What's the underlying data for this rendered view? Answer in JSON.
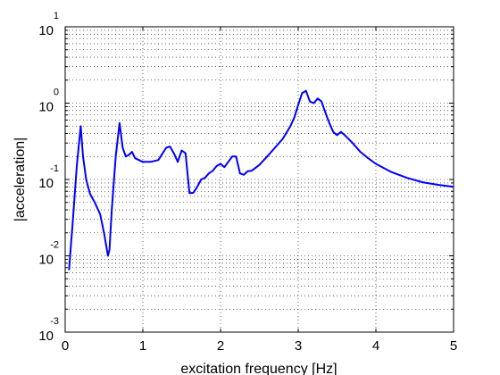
{
  "chart_data": {
    "type": "line",
    "title": "",
    "xlabel": "excitation frequency [Hz]",
    "ylabel": "|acceleration|",
    "xlim": [
      0,
      5
    ],
    "ylim": [
      0.001,
      10
    ],
    "yscale": "log",
    "grid": true,
    "x_ticks": [
      "0",
      "1",
      "2",
      "3",
      "4",
      "5"
    ],
    "y_ticks": [
      {
        "base": "10",
        "exp": "-3"
      },
      {
        "base": "10",
        "exp": "-2"
      },
      {
        "base": "10",
        "exp": "-1"
      },
      {
        "base": "10",
        "exp": "0"
      },
      {
        "base": "10",
        "exp": "1"
      }
    ],
    "series": [
      {
        "color": "#0000ff",
        "x": [
          0.05,
          0.1,
          0.15,
          0.2,
          0.23,
          0.27,
          0.32,
          0.38,
          0.45,
          0.5,
          0.55,
          0.57,
          0.6,
          0.65,
          0.7,
          0.74,
          0.78,
          0.82,
          0.86,
          0.9,
          1.0,
          1.1,
          1.2,
          1.3,
          1.35,
          1.4,
          1.45,
          1.5,
          1.55,
          1.6,
          1.65,
          1.7,
          1.75,
          1.8,
          1.85,
          1.9,
          1.95,
          2.0,
          2.05,
          2.1,
          2.15,
          2.2,
          2.25,
          2.3,
          2.35,
          2.4,
          2.5,
          2.6,
          2.7,
          2.8,
          2.9,
          2.95,
          3.0,
          3.05,
          3.1,
          3.15,
          3.2,
          3.25,
          3.3,
          3.35,
          3.4,
          3.45,
          3.5,
          3.55,
          3.6,
          3.7,
          3.8,
          3.9,
          4.0,
          4.2,
          4.4,
          4.6,
          4.8,
          5.0
        ],
        "y": [
          0.0065,
          0.03,
          0.15,
          0.5,
          0.2,
          0.1,
          0.065,
          0.05,
          0.035,
          0.02,
          0.01,
          0.012,
          0.04,
          0.2,
          0.55,
          0.26,
          0.2,
          0.21,
          0.23,
          0.19,
          0.17,
          0.17,
          0.18,
          0.26,
          0.27,
          0.22,
          0.17,
          0.24,
          0.22,
          0.066,
          0.067,
          0.08,
          0.1,
          0.105,
          0.12,
          0.13,
          0.15,
          0.16,
          0.145,
          0.17,
          0.2,
          0.2,
          0.12,
          0.115,
          0.128,
          0.13,
          0.155,
          0.2,
          0.26,
          0.34,
          0.5,
          0.65,
          0.95,
          1.35,
          1.45,
          1.05,
          1.0,
          1.15,
          1.05,
          0.75,
          0.55,
          0.42,
          0.38,
          0.42,
          0.38,
          0.3,
          0.23,
          0.19,
          0.16,
          0.125,
          0.105,
          0.092,
          0.085,
          0.08
        ]
      }
    ]
  }
}
